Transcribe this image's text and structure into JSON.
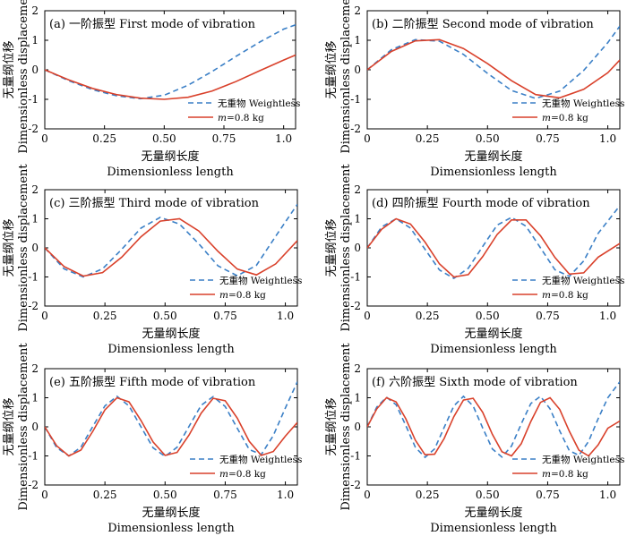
{
  "figure": {
    "common": {
      "xlabel_cn": "无量纲长度",
      "xlabel_en": "Dimensionless length",
      "ylabel_cn": "无量纲位移",
      "ylabel_en": "Dimensionless displacement",
      "legend_weightless": "无重物 Weightless",
      "legend_mass_prefix": "m",
      "legend_mass_suffix": "=0.8 kg"
    }
  },
  "colors": {
    "weightless": "#3a7fc6",
    "mass": "#d9412b"
  },
  "chart_data": [
    {
      "type": "line",
      "title": "(a) 一阶振型 First mode of vibration",
      "xlabel": "无量纲长度 Dimensionless length",
      "ylabel": "无量纲位移 Dimensionless displacement",
      "xlim": [
        0,
        1.05
      ],
      "ylim": [
        -2,
        2
      ],
      "xticks": [
        "0",
        "0.25",
        "0.50",
        "0.75",
        "1.0"
      ],
      "yticks": [
        "-2",
        "-1",
        "0",
        "1",
        "2"
      ],
      "grid": false,
      "legend": "bottom-right",
      "series": [
        {
          "name": "无重物 Weightless",
          "style": "dashed",
          "x": [
            0,
            0.1,
            0.2,
            0.3,
            0.4,
            0.5,
            0.6,
            0.7,
            0.8,
            0.9,
            1.0,
            1.05
          ],
          "y": [
            0,
            -0.37,
            -0.67,
            -0.88,
            -0.98,
            -0.86,
            -0.52,
            -0.06,
            0.45,
            0.94,
            1.38,
            1.52
          ]
        },
        {
          "name": "m=0.8 kg",
          "style": "solid",
          "x": [
            0,
            0.1,
            0.2,
            0.3,
            0.4,
            0.5,
            0.6,
            0.7,
            0.8,
            0.9,
            1.0,
            1.05
          ],
          "y": [
            0,
            -0.34,
            -0.63,
            -0.84,
            -0.96,
            -1.0,
            -0.93,
            -0.72,
            -0.4,
            -0.03,
            0.33,
            0.5
          ]
        }
      ]
    },
    {
      "type": "line",
      "title": "(b) 二阶振型 Second mode of vibration",
      "xlabel": "无量纲长度 Dimensionless length",
      "ylabel": "无量纲位移 Dimensionless displacement",
      "xlim": [
        0,
        1.05
      ],
      "ylim": [
        -2,
        2
      ],
      "xticks": [
        "0",
        "0.25",
        "0.50",
        "0.75",
        "1.0"
      ],
      "yticks": [
        "-2",
        "-1",
        "0",
        "1",
        "2"
      ],
      "grid": false,
      "legend": "bottom-right",
      "series": [
        {
          "name": "无重物 Weightless",
          "style": "dashed",
          "x": [
            0,
            0.1,
            0.2,
            0.3,
            0.4,
            0.5,
            0.6,
            0.7,
            0.8,
            0.9,
            1.0,
            1.05
          ],
          "y": [
            0,
            0.68,
            1.02,
            0.97,
            0.52,
            -0.12,
            -0.7,
            -0.97,
            -0.72,
            -0.02,
            0.92,
            1.48
          ]
        },
        {
          "name": "m=0.8 kg",
          "style": "solid",
          "x": [
            0,
            0.1,
            0.2,
            0.3,
            0.4,
            0.5,
            0.6,
            0.7,
            0.8,
            0.9,
            1.0,
            1.05
          ],
          "y": [
            0,
            0.62,
            0.98,
            1.02,
            0.72,
            0.21,
            -0.37,
            -0.84,
            -0.95,
            -0.66,
            -0.1,
            0.33
          ]
        }
      ]
    },
    {
      "type": "line",
      "title": "(c) 三阶振型 Third mode of vibration",
      "xlabel": "无量纲长度 Dimensionless length",
      "ylabel": "无量纲位移 Dimensionless displacement",
      "xlim": [
        0,
        1.05
      ],
      "ylim": [
        -2,
        2
      ],
      "xticks": [
        "0",
        "0.25",
        "0.50",
        "0.75",
        "1.0"
      ],
      "yticks": [
        "-2",
        "-1",
        "0",
        "1",
        "2"
      ],
      "grid": false,
      "legend": "bottom-right",
      "series": [
        {
          "name": "无重物 Weightless",
          "style": "dashed",
          "x": [
            0,
            0.08,
            0.16,
            0.24,
            0.32,
            0.4,
            0.48,
            0.56,
            0.64,
            0.72,
            0.8,
            0.88,
            0.96,
            1.05
          ],
          "y": [
            0,
            -0.72,
            -1.0,
            -0.72,
            -0.05,
            0.68,
            1.05,
            0.82,
            0.14,
            -0.62,
            -0.96,
            -0.6,
            0.4,
            1.5
          ]
        },
        {
          "name": "m=0.8 kg",
          "style": "solid",
          "x": [
            0,
            0.08,
            0.16,
            0.24,
            0.32,
            0.4,
            0.48,
            0.56,
            0.64,
            0.72,
            0.8,
            0.88,
            0.96,
            1.05
          ],
          "y": [
            0,
            -0.64,
            -0.97,
            -0.85,
            -0.32,
            0.38,
            0.92,
            1.0,
            0.58,
            -0.12,
            -0.73,
            -0.93,
            -0.55,
            0.25
          ]
        }
      ]
    },
    {
      "type": "line",
      "title": "(d) 四阶振型 Fourth mode of vibration",
      "xlabel": "无量纲长度 Dimensionless length",
      "ylabel": "无量纲位移 Dimensionless displacement",
      "xlim": [
        0,
        1.05
      ],
      "ylim": [
        -2,
        2
      ],
      "xticks": [
        "0",
        "0.25",
        "0.50",
        "0.75",
        "1.0"
      ],
      "yticks": [
        "-2",
        "-1",
        "0",
        "1",
        "2"
      ],
      "grid": false,
      "legend": "bottom-right",
      "series": [
        {
          "name": "无重物 Weightless",
          "style": "dashed",
          "x": [
            0,
            0.06,
            0.12,
            0.18,
            0.24,
            0.3,
            0.36,
            0.42,
            0.48,
            0.54,
            0.6,
            0.66,
            0.72,
            0.78,
            0.84,
            0.9,
            0.96,
            1.05
          ],
          "y": [
            0,
            0.72,
            1.0,
            0.68,
            -0.05,
            -0.76,
            -1.05,
            -0.7,
            0.05,
            0.78,
            1.05,
            0.74,
            0.0,
            -0.75,
            -0.98,
            -0.45,
            0.5,
            1.45
          ]
        },
        {
          "name": "m=0.8 kg",
          "style": "solid",
          "x": [
            0,
            0.06,
            0.12,
            0.18,
            0.24,
            0.3,
            0.36,
            0.42,
            0.48,
            0.54,
            0.6,
            0.66,
            0.72,
            0.78,
            0.84,
            0.9,
            0.96,
            1.05
          ],
          "y": [
            0,
            0.64,
            1.0,
            0.82,
            0.2,
            -0.55,
            -1.0,
            -0.92,
            -0.3,
            0.46,
            0.96,
            0.96,
            0.42,
            -0.33,
            -0.9,
            -0.86,
            -0.32,
            0.15
          ]
        }
      ]
    },
    {
      "type": "line",
      "title": "(e) 五阶振型 Fifth mode of vibration",
      "xlabel": "无量纲长度 Dimensionless length",
      "ylabel": "无量纲位移 Dimensionless displacement",
      "xlim": [
        0,
        1.05
      ],
      "ylim": [
        -2,
        2
      ],
      "xticks": [
        "0",
        "0.25",
        "0.50",
        "0.75",
        "1.0"
      ],
      "yticks": [
        "-2",
        "-1",
        "0",
        "1",
        "2"
      ],
      "grid": false,
      "legend": "bottom-right",
      "series": [
        {
          "name": "无重物 Weightless",
          "style": "dashed",
          "x": [
            0,
            0.05,
            0.1,
            0.15,
            0.2,
            0.25,
            0.3,
            0.35,
            0.4,
            0.45,
            0.5,
            0.55,
            0.6,
            0.65,
            0.7,
            0.75,
            0.8,
            0.85,
            0.9,
            0.95,
            1.0,
            1.05
          ],
          "y": [
            0,
            -0.72,
            -1.0,
            -0.7,
            0.02,
            0.72,
            1.05,
            0.72,
            0.0,
            -0.72,
            -1.02,
            -0.7,
            0.02,
            0.74,
            1.04,
            0.7,
            -0.05,
            -0.78,
            -0.95,
            -0.3,
            0.65,
            1.55
          ]
        },
        {
          "name": "m=0.8 kg",
          "style": "solid",
          "x": [
            0,
            0.05,
            0.1,
            0.15,
            0.2,
            0.25,
            0.3,
            0.35,
            0.4,
            0.45,
            0.5,
            0.55,
            0.6,
            0.65,
            0.7,
            0.75,
            0.8,
            0.85,
            0.9,
            0.95,
            1.0,
            1.05
          ],
          "y": [
            0,
            -0.66,
            -1.0,
            -0.8,
            -0.15,
            0.58,
            1.0,
            0.86,
            0.22,
            -0.52,
            -0.98,
            -0.88,
            -0.28,
            0.47,
            0.98,
            0.9,
            0.3,
            -0.5,
            -0.98,
            -0.85,
            -0.32,
            0.15
          ]
        }
      ]
    },
    {
      "type": "line",
      "title": "(f) 六阶振型 Sixth mode of vibration",
      "xlabel": "无量纲长度 Dimensionless length",
      "ylabel": "无量纲位移 Dimensionless displacement",
      "xlim": [
        0,
        1.05
      ],
      "ylim": [
        -2,
        2
      ],
      "xticks": [
        "0",
        "0.25",
        "0.50",
        "0.75",
        "1.0"
      ],
      "yticks": [
        "-2",
        "-1",
        "0",
        "1",
        "2"
      ],
      "grid": false,
      "legend": "bottom-right",
      "series": [
        {
          "name": "无重物 Weightless",
          "style": "dashed",
          "x": [
            0,
            0.04,
            0.08,
            0.12,
            0.16,
            0.2,
            0.24,
            0.28,
            0.32,
            0.36,
            0.4,
            0.44,
            0.48,
            0.52,
            0.56,
            0.6,
            0.64,
            0.68,
            0.72,
            0.76,
            0.8,
            0.84,
            0.88,
            0.92,
            0.96,
            1.0,
            1.05
          ],
          "y": [
            0,
            0.68,
            1.02,
            0.76,
            0.05,
            -0.7,
            -1.05,
            -0.76,
            -0.02,
            0.72,
            1.05,
            0.72,
            -0.04,
            -0.76,
            -1.04,
            -0.66,
            0.1,
            0.8,
            1.05,
            0.62,
            -0.14,
            -0.82,
            -0.98,
            -0.5,
            0.28,
            1.0,
            1.55
          ]
        },
        {
          "name": "m=0.8 kg",
          "style": "solid",
          "x": [
            0,
            0.04,
            0.08,
            0.12,
            0.16,
            0.2,
            0.24,
            0.28,
            0.32,
            0.36,
            0.4,
            0.44,
            0.48,
            0.52,
            0.56,
            0.6,
            0.64,
            0.68,
            0.72,
            0.76,
            0.8,
            0.84,
            0.88,
            0.92,
            0.96,
            1.0,
            1.05
          ],
          "y": [
            0,
            0.62,
            1.0,
            0.86,
            0.28,
            -0.46,
            -0.96,
            -0.94,
            -0.4,
            0.35,
            0.92,
            0.98,
            0.5,
            -0.26,
            -0.86,
            -1.0,
            -0.58,
            0.18,
            0.84,
            1.0,
            0.6,
            -0.15,
            -0.8,
            -1.0,
            -0.62,
            -0.05,
            0.2
          ]
        }
      ]
    }
  ]
}
